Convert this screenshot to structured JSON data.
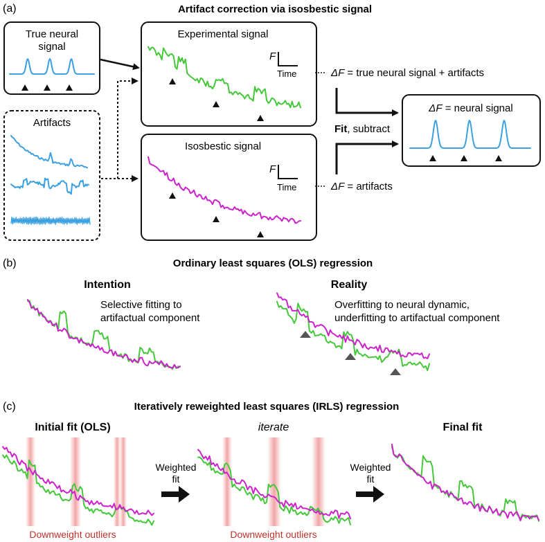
{
  "colors": {
    "neural": "#3aa0e0",
    "experimental": "#44c83a",
    "isosbestic": "#cc22cc",
    "outlier": "#c0302a"
  },
  "panel_a": {
    "label": "(a)",
    "title": "Artifact correction via isosbestic signal",
    "true_neural_title_l1": "True neural",
    "true_neural_title_l2": "signal",
    "artifacts_title": "Artifacts",
    "experimental_title": "Experimental signal",
    "isosbestic_title": "Isosbestic signal",
    "axis_f": "F",
    "axis_time": "Time",
    "delta_f": "ΔF",
    "eq_experimental_rest": " = true neural signal + artifacts",
    "eq_isosbestic_rest": " = artifacts",
    "fit_bold": "Fit",
    "fit_rest": ", subtract",
    "result_rest": " = neural signal"
  },
  "panel_b": {
    "label": "(b)",
    "title": "Ordinary least squares (OLS) regression",
    "intention_title": "Intention",
    "intention_desc_l1": "Selective fitting to",
    "intention_desc_l2": "artifactual component",
    "reality_title": "Reality",
    "reality_desc_l1": "Overfitting to neural dynamic,",
    "reality_desc_l2": "underfitting to artifactual component"
  },
  "panel_c": {
    "label": "(c)",
    "title": "Iteratively reweighted least squares (IRLS) regression",
    "initial_title": "Initial fit (OLS)",
    "iterate_title": "iterate",
    "final_title": "Final fit",
    "weighted_l1": "Weighted",
    "weighted_l2": "fit",
    "downweight": "Downweight outliers"
  }
}
